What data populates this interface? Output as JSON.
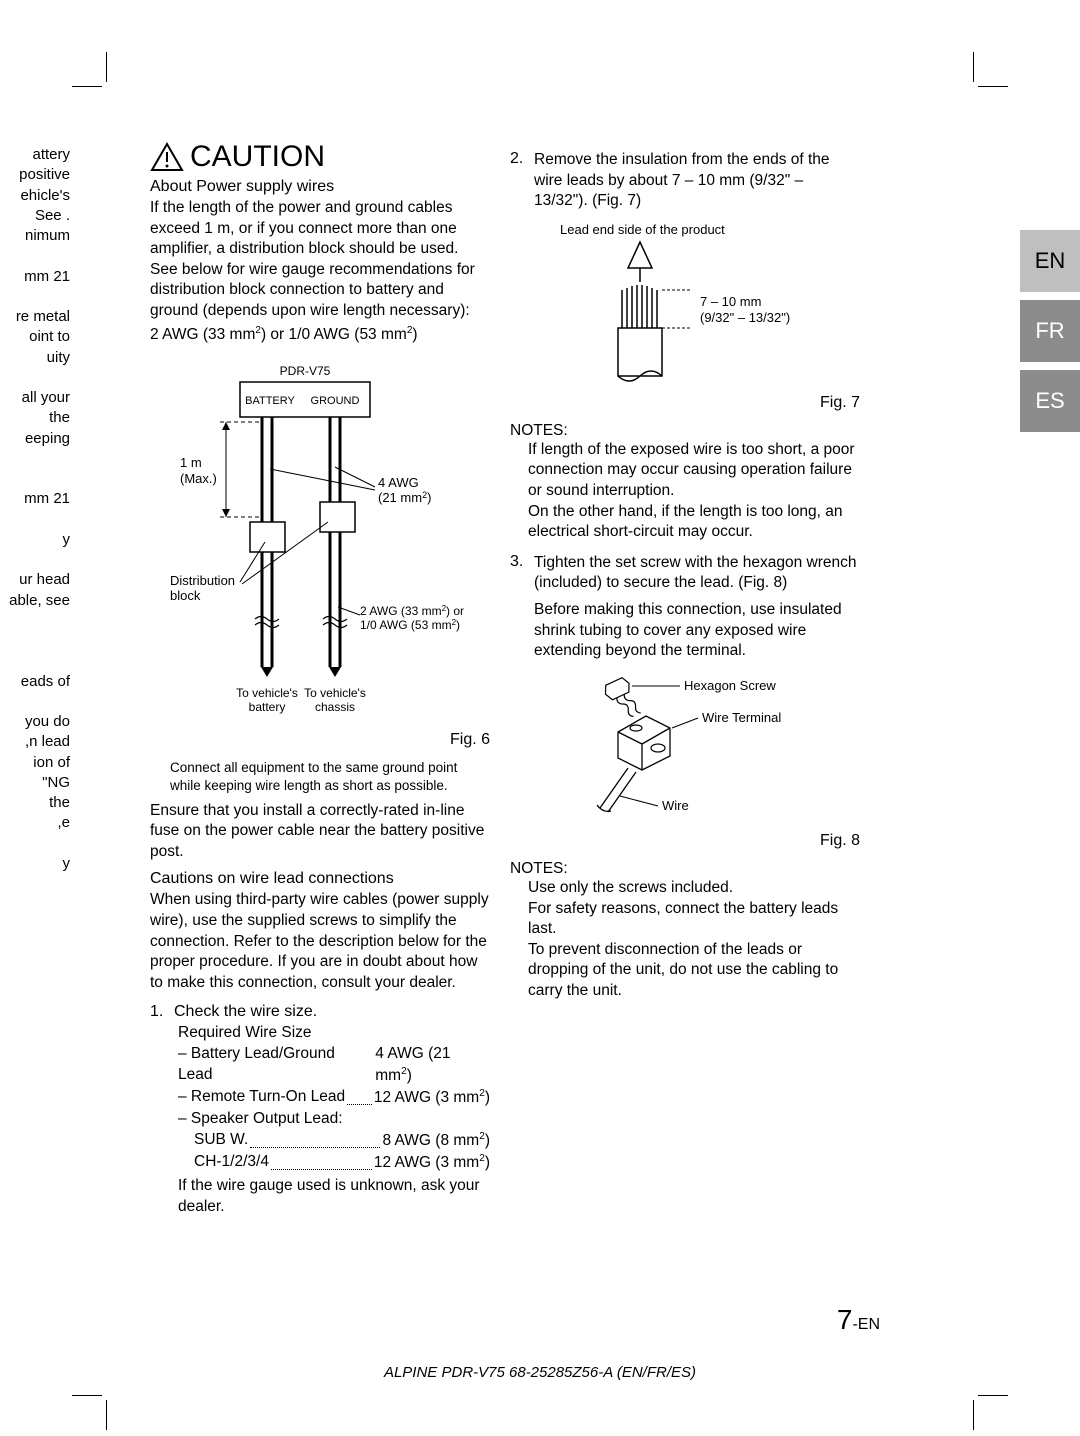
{
  "crop_marks": true,
  "lang_tabs": [
    "EN",
    "FR",
    "ES"
  ],
  "left_fragment": [
    "attery",
    "positive",
    "ehicle's",
    ". See",
    "nimum",
    "",
    "21 mm",
    "",
    "re metal",
    "oint to",
    "uity",
    "",
    "all your",
    "the",
    "eeping",
    "",
    "",
    "21 mm",
    "",
    "y",
    "",
    "ur head",
    "able, see",
    "",
    "",
    "",
    "eads of",
    "",
    "you do",
    "n lead,",
    "ion of",
    "NG\"",
    "the",
    "e,",
    "",
    "y"
  ],
  "col1": {
    "caution": "CAUTION",
    "about_head": "About Power supply wires",
    "about_body": "If the length of the power and ground cables exceed 1 m, or if you connect more than one amplifier, a distribution block should be used. See below for wire gauge recommendations for distribution block connection to battery and ground (depends upon wire length necessary):",
    "about_spec": "2 AWG (33 mm²) or 1/0 AWG (53 mm²)",
    "fig6": {
      "label_top": "PDR-V75",
      "battery": "BATTERY",
      "ground": "GROUND",
      "one_m": "1 m",
      "one_m2": "(Max.)",
      "four_awg": "4 AWG",
      "four_awg2": "(21 mm²)",
      "dist": "Distribution",
      "dist2": "block",
      "two_awg": "2 AWG (33 mm²) or",
      "two_awg2": "1/0 AWG (53 mm²)",
      "to_batt": "To vehicle's",
      "to_batt2": "battery",
      "to_chassis": "To vehicle's",
      "to_chassis2": "chassis",
      "caption": "Fig. 6"
    },
    "connect_note": "Connect all equipment to the same ground point while keeping wire length as short as possible.",
    "ensure": "Ensure that you install a correctly-rated in-line fuse on the power cable near the battery positive post.",
    "cautions_head": "Cautions on wire lead connections",
    "cautions_body": "When using third-party wire cables (power supply wire), use the supplied screws to simplify the connection. Refer to the description below for the proper procedure. If you are in doubt about how to make this connection, consult your dealer.",
    "step1_num": "1.",
    "step1": "Check the wire size.",
    "req_head": "Required Wire Size",
    "req_batt_l": "– Battery Lead/Ground Lead",
    "req_batt_r": "4 AWG (21 mm²)",
    "req_remote_l": "– Remote Turn-On Lead",
    "req_remote_r": "12 AWG (3 mm²)",
    "req_speaker": "– Speaker Output Lead:",
    "req_subw_l": "SUB W.",
    "req_subw_r": "8 AWG (8 mm²)",
    "req_ch_l": "CH-1/2/3/4",
    "req_ch_r": "12 AWG (3 mm²)",
    "unknown": "If the wire gauge used is unknown, ask your dealer."
  },
  "col2": {
    "step2_num": "2.",
    "step2": "Remove the insulation from the ends of the wire leads by about 7 – 10 mm (9/32\" – 13/32\"). (Fig. 7)",
    "fig7": {
      "lead_end": "Lead end side of the product",
      "dim1": "7 – 10 mm",
      "dim2": "(9/32\" – 13/32\")",
      "caption": "Fig. 7"
    },
    "notes1_head": "NOTES:",
    "notes1_body1": "If length of the exposed wire is too short, a poor connection may occur causing operation failure or sound interruption.",
    "notes1_body2": "On the other hand, if the length is too long, an electrical short-circuit may occur.",
    "step3_num": "3.",
    "step3a": "Tighten the set screw with the hexagon wrench (included) to secure the lead. (Fig. 8)",
    "step3b": "Before making this connection, use insulated shrink tubing to cover any exposed wire extending beyond the terminal.",
    "fig8": {
      "hex": "Hexagon Screw",
      "term": "Wire Terminal",
      "wire": "Wire",
      "caption": "Fig. 8"
    },
    "notes2_head": "NOTES:",
    "notes2_a": "Use only the screws included.",
    "notes2_b": "For safety reasons, connect the battery leads last.",
    "notes2_c": "To prevent disconnection of the leads or dropping of the unit, do not use the cabling to carry the unit."
  },
  "page_num_big": "7",
  "page_num_suffix": "-EN",
  "footer": "ALPINE PDR-V75 68-25285Z56-A (EN/FR/ES)"
}
